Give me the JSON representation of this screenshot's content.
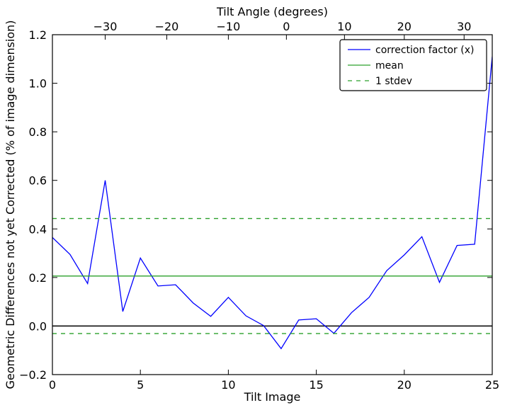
{
  "chart_data": {
    "type": "line",
    "title": "",
    "xlabel": "Tilt Image",
    "ylabel": "Geometric Differences not yet Corrected (% of image dimension)",
    "top_xlabel": "Tilt Angle (degrees)",
    "xlim": [
      0,
      25
    ],
    "ylim": [
      -0.2,
      1.2
    ],
    "x_ticks": [
      0,
      5,
      10,
      15,
      20,
      25
    ],
    "y_ticks": [
      -0.2,
      0.0,
      0.2,
      0.4,
      0.6,
      0.8,
      1.0,
      1.2
    ],
    "top_ticks": [
      {
        "x": 3,
        "label": "−30"
      },
      {
        "x": 6.5,
        "label": "−20"
      },
      {
        "x": 10,
        "label": "−10"
      },
      {
        "x": 13.3,
        "label": "0"
      },
      {
        "x": 16.6,
        "label": "10"
      },
      {
        "x": 20,
        "label": "20"
      },
      {
        "x": 23.4,
        "label": "30"
      }
    ],
    "series": [
      {
        "name": "correction factor (x)",
        "color": "#0000ff",
        "style": "solid",
        "x": [
          0,
          1,
          2,
          3,
          4,
          5,
          6,
          7,
          8,
          9,
          10,
          11,
          12,
          13,
          14,
          15,
          16,
          17,
          18,
          19,
          20,
          21,
          22,
          23,
          24,
          25
        ],
        "y": [
          0.365,
          0.295,
          0.175,
          0.6,
          0.06,
          0.28,
          0.165,
          0.17,
          0.095,
          0.04,
          0.118,
          0.042,
          0.002,
          -0.093,
          0.025,
          0.03,
          -0.03,
          0.055,
          0.118,
          0.228,
          0.293,
          0.368,
          0.18,
          0.332,
          0.337,
          1.11
        ]
      },
      {
        "name": "mean",
        "color": "#2ca02c",
        "style": "solid",
        "x": [
          0,
          25
        ],
        "y": [
          0.206,
          0.206
        ]
      },
      {
        "name": "1 stdev",
        "color": "#2ca02c",
        "style": "dashed",
        "x": [
          0,
          25
        ],
        "y": [
          0.443,
          0.443
        ]
      },
      {
        "name": "",
        "color": "#2ca02c",
        "style": "dashed",
        "x": [
          0,
          25
        ],
        "y": [
          -0.031,
          -0.031
        ]
      }
    ],
    "zero_line": {
      "y": 0.0,
      "color": "#000000"
    },
    "legend_placement": "top-right",
    "grid": false
  }
}
